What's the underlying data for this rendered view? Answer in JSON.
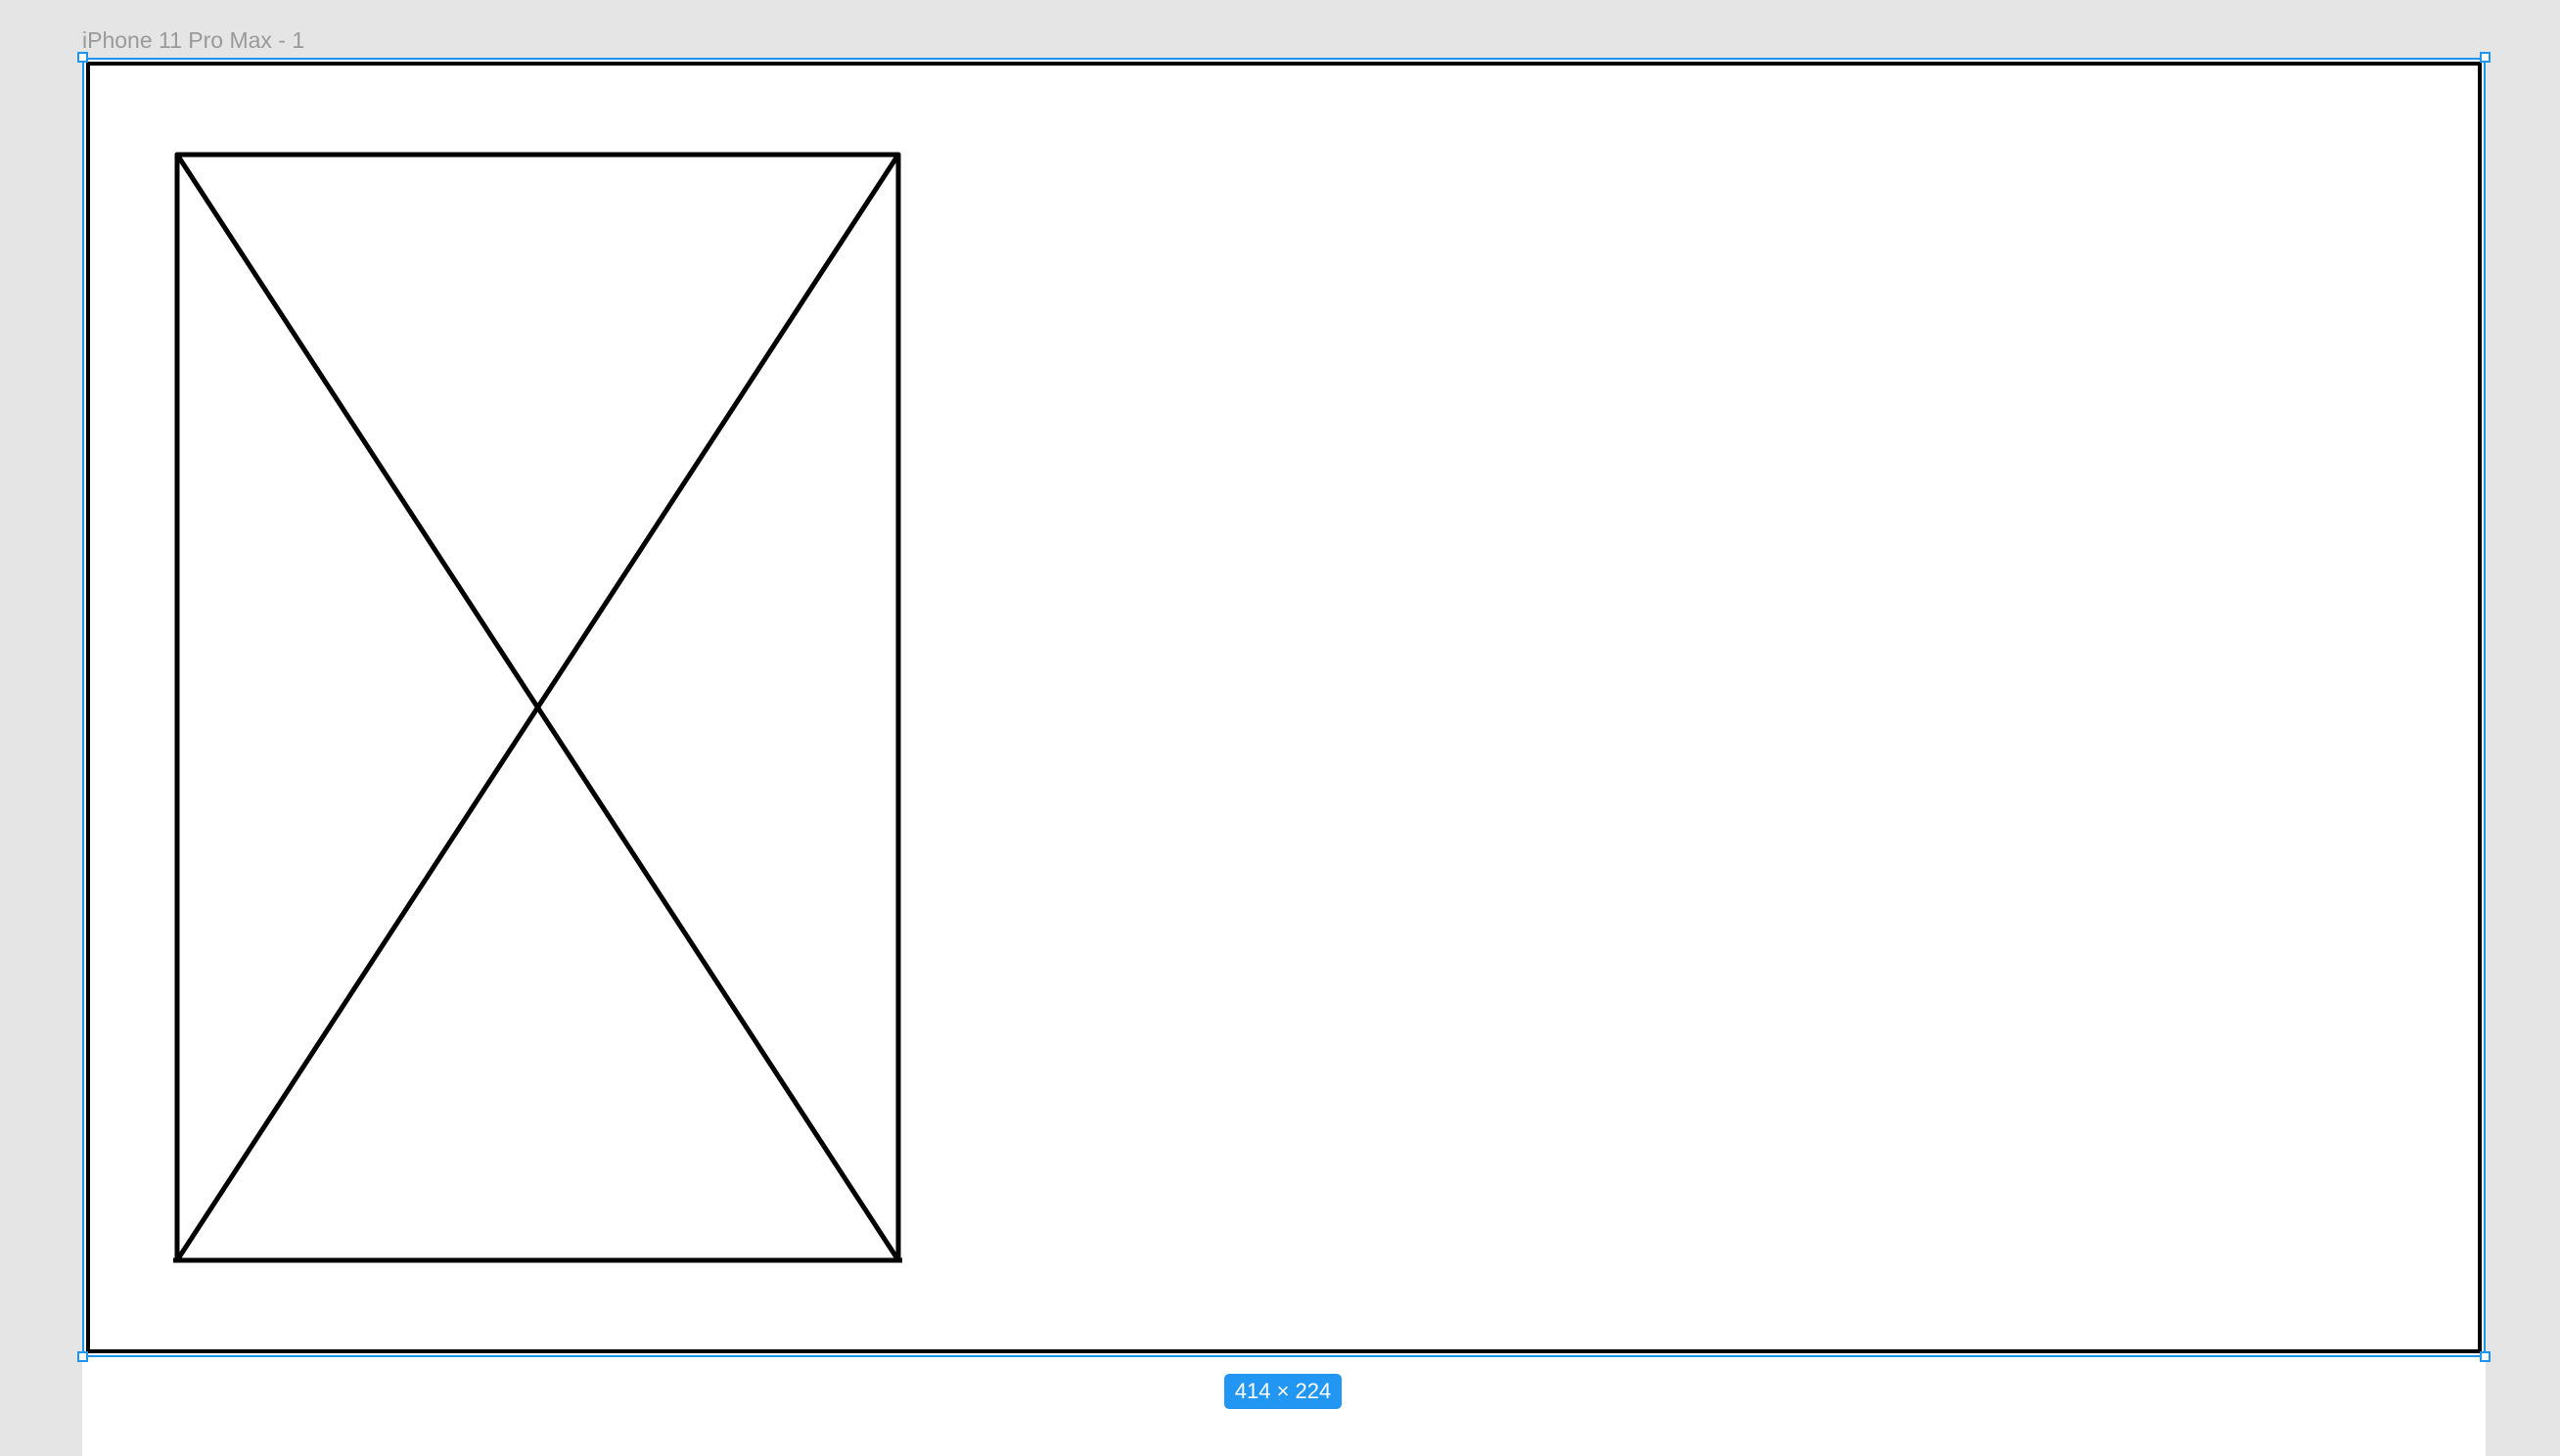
{
  "canvas": {
    "frame_name": "iPhone 11 Pro Max - 1",
    "selection_size": "414 × 224"
  },
  "colors": {
    "canvas_background": "#e5e5e5",
    "frame_fill": "#ffffff",
    "selection_accent": "#1e96f0",
    "stroke": "#000000",
    "frame_label_text": "#9a9a9a"
  },
  "icons": {
    "image_placeholder": "image-placeholder-icon"
  }
}
